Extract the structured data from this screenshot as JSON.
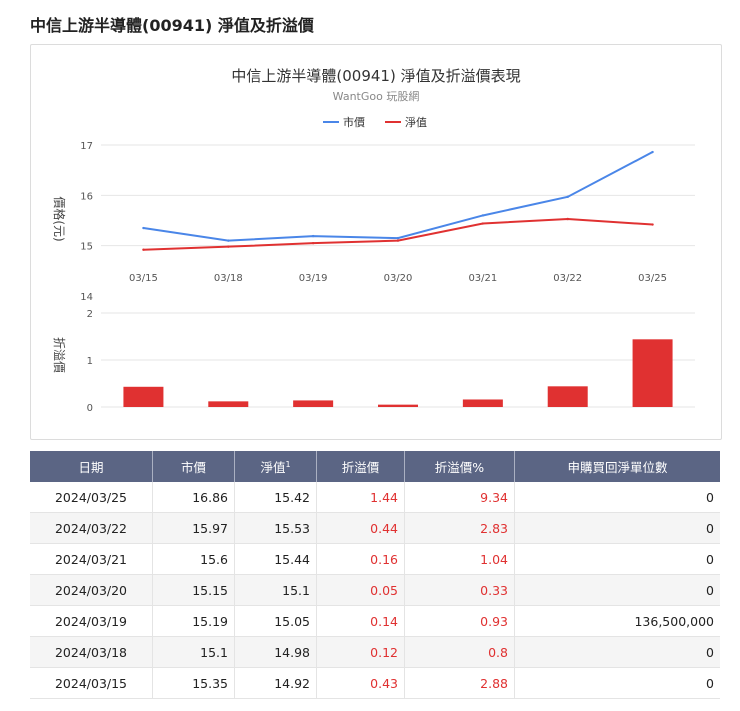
{
  "page": {
    "title": "中信上游半導體(00941) 淨值及折溢價"
  },
  "chart_data": [
    {
      "type": "line",
      "title": "中信上游半導體(00941) 淨值及折溢價表現",
      "subtitle": "WantGoo 玩股網",
      "ylabel": "價格(元)",
      "categories": [
        "03/15",
        "03/18",
        "03/19",
        "03/20",
        "03/21",
        "03/22",
        "03/25"
      ],
      "ylim": [
        14,
        17
      ],
      "yticks": [
        "17",
        "16",
        "15",
        "14"
      ],
      "legend": "top-center",
      "series": [
        {
          "name": "市價",
          "color": "#4a86e8",
          "values": [
            15.35,
            15.1,
            15.19,
            15.15,
            15.6,
            15.97,
            16.86
          ]
        },
        {
          "name": "淨值",
          "color": "#e03131",
          "values": [
            14.92,
            14.98,
            15.05,
            15.1,
            15.44,
            15.53,
            15.42
          ]
        }
      ]
    },
    {
      "type": "bar",
      "ylabel": "折溢價",
      "categories": [
        "03/15",
        "03/18",
        "03/19",
        "03/20",
        "03/21",
        "03/22",
        "03/25"
      ],
      "ylim": [
        0,
        2
      ],
      "yticks": [
        "2",
        "1",
        "0"
      ],
      "color": "#e03131",
      "values": [
        0.43,
        0.12,
        0.14,
        0.05,
        0.16,
        0.44,
        1.44
      ]
    }
  ],
  "table": {
    "headers": {
      "date": "日期",
      "market": "市價",
      "nav": "淨值",
      "nav_sup": "1",
      "premium": "折溢價",
      "premium_pct": "折溢價%",
      "units": "申購買回淨單位數"
    },
    "rows": [
      {
        "date": "2024/03/25",
        "market": "16.86",
        "nav": "15.42",
        "premium": "1.44",
        "premium_pct": "9.34",
        "units": "0"
      },
      {
        "date": "2024/03/22",
        "market": "15.97",
        "nav": "15.53",
        "premium": "0.44",
        "premium_pct": "2.83",
        "units": "0"
      },
      {
        "date": "2024/03/21",
        "market": "15.6",
        "nav": "15.44",
        "premium": "0.16",
        "premium_pct": "1.04",
        "units": "0"
      },
      {
        "date": "2024/03/20",
        "market": "15.15",
        "nav": "15.1",
        "premium": "0.05",
        "premium_pct": "0.33",
        "units": "0"
      },
      {
        "date": "2024/03/19",
        "market": "15.19",
        "nav": "15.05",
        "premium": "0.14",
        "premium_pct": "0.93",
        "units": "136,500,000"
      },
      {
        "date": "2024/03/18",
        "market": "15.1",
        "nav": "14.98",
        "premium": "0.12",
        "premium_pct": "0.8",
        "units": "0"
      },
      {
        "date": "2024/03/15",
        "market": "15.35",
        "nav": "14.92",
        "premium": "0.43",
        "premium_pct": "2.88",
        "units": "0"
      }
    ]
  }
}
